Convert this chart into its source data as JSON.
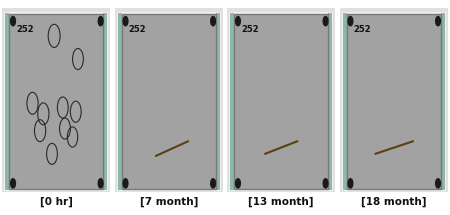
{
  "labels": [
    "[0 hr]",
    "[7 month]",
    "[13 month]",
    "[18 month]"
  ],
  "panel_label": "252",
  "figure_bg": "#ffffff",
  "outer_frame_color": "#d8d8d8",
  "panel_bg": "#a8a8a8",
  "panel_border_color": "#888888",
  "teal_edge": "#8aada0",
  "bolt_color": "#1a1a1a",
  "label_fontsize": 7.5,
  "panel_label_fontsize": 6.0,
  "circles_panel0": [
    [
      0.48,
      0.84,
      0.055
    ],
    [
      0.7,
      0.73,
      0.05
    ],
    [
      0.28,
      0.52,
      0.052
    ],
    [
      0.38,
      0.47,
      0.052
    ],
    [
      0.56,
      0.5,
      0.05
    ],
    [
      0.68,
      0.48,
      0.05
    ],
    [
      0.35,
      0.39,
      0.052
    ],
    [
      0.58,
      0.4,
      0.05
    ],
    [
      0.65,
      0.36,
      0.048
    ],
    [
      0.46,
      0.28,
      0.05
    ]
  ],
  "scratch_coords": {
    "1": [
      [
        0.38,
        0.27,
        0.68,
        0.34
      ]
    ],
    "2": [
      [
        0.35,
        0.28,
        0.65,
        0.34
      ]
    ],
    "3": [
      [
        0.33,
        0.28,
        0.68,
        0.34
      ]
    ]
  },
  "scratch_color": "#5a4010",
  "scratch_linewidth": 1.5
}
